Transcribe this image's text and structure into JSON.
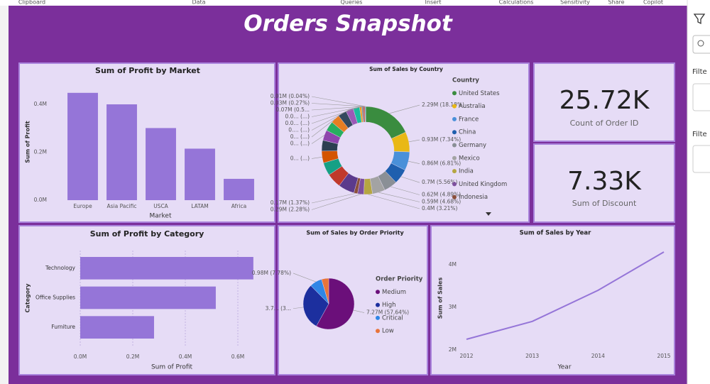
{
  "ribbon": [
    "Clipboard",
    "Data",
    "Queries",
    "Insert",
    "Calculations",
    "Sensitivity",
    "Share",
    "Copilot"
  ],
  "title": "Orders Snapshot",
  "side_panel": {
    "labels": [
      "Filte",
      "Filte"
    ]
  },
  "cards": [
    {
      "value": "25.72K",
      "label": "Count of Order ID"
    },
    {
      "value": "7.33K",
      "label": "Sum of Discount"
    }
  ],
  "chart_data": [
    {
      "type": "bar",
      "title": "Sum of Profit by Market",
      "x_label": "Market",
      "y_label": "Sum of Profit",
      "categories": [
        "Europe",
        "Asia Pacific",
        "USCA",
        "LATAM",
        "Africa"
      ],
      "values": [
        448000,
        400000,
        301000,
        215000,
        89000
      ],
      "color": "#9575d8",
      "ylim": [
        0,
        480000
      ],
      "yticks": [
        {
          "value": 0,
          "label": "0.0M"
        },
        {
          "value": 200000,
          "label": "0.2M"
        },
        {
          "value": 400000,
          "label": "0.4M"
        }
      ]
    },
    {
      "type": "donut",
      "title": "Sum of Sales by Country",
      "legend_title": "Country",
      "categories": [
        "United States",
        "Australia",
        "France",
        "China",
        "Germany",
        "Mexico",
        "India",
        "United Kingdom",
        "Indonesia",
        null,
        null,
        null,
        null,
        null,
        null,
        null,
        null,
        null,
        null,
        null,
        null,
        null,
        null,
        null,
        null
      ],
      "values": [
        2290000,
        930000,
        860000,
        700000,
        620000,
        590000,
        400000,
        290000,
        170000,
        750000,
        680000,
        600000,
        550000,
        500000,
        480000,
        450000,
        420000,
        400000,
        350000,
        300000,
        90000,
        80000,
        70000,
        34000,
        6000
      ],
      "value_labels": [
        "2.29M (18.18%)",
        "0.93M (7.34%)",
        "0.86M (6.81%)",
        "0.7M (5.56%)",
        "0.62M (4.89%)",
        "0.59M (4.68%)",
        "0.4M (3.21%)",
        "0.29M (2.28%)",
        "0.17M (1.37%)",
        null,
        null,
        null,
        "0... (...)",
        null,
        "0... (...)",
        null,
        "0... (...)",
        null,
        "0.... (...)",
        null,
        "0.0... (...)",
        "0.0... (...)",
        "0.07M (0.5...",
        "0.03M (0.27%)",
        "0.01M (0.04%)"
      ],
      "colors": [
        "#3a8c3f",
        "#e9b816",
        "#4a90d9",
        "#1f5fae",
        "#8a8f96",
        "#a3a3a3",
        "#b5a642",
        "#7d4f9e",
        "#8b4f3a",
        "#5b3a8c",
        "#c0392b",
        "#16a085",
        "#d35400",
        "#2c3e50",
        "#8e44ad",
        "#27ae60",
        "#e67e22",
        "#34495e",
        "#9b59b6",
        "#1abc9c",
        "#f39c12",
        "#7f8c8d",
        "#c0392b",
        "#2980b9",
        "#d4a017"
      ]
    },
    {
      "type": "hbar",
      "title": "Sum of Profit by Category",
      "x_label": "Sum of Profit",
      "y_label": "Category",
      "categories": [
        "Technology",
        "Office Supplies",
        "Furniture"
      ],
      "values": [
        659000,
        516000,
        281000
      ],
      "color": "#9575d8",
      "xlim": [
        0,
        700000
      ],
      "xticks": [
        {
          "value": 0,
          "label": "0.0M"
        },
        {
          "value": 200000,
          "label": "0.2M"
        },
        {
          "value": 400000,
          "label": "0.4M"
        },
        {
          "value": 600000,
          "label": "0.6M"
        }
      ],
      "grid": true
    },
    {
      "type": "pie",
      "title": "Sum of Sales by Order Priority",
      "legend_title": "Order Priority",
      "categories": [
        "Medium",
        "High",
        "Critical",
        "Low"
      ],
      "values": [
        7270000,
        3700000,
        980000,
        570000
      ],
      "value_labels": [
        "7.27M (57.64%)",
        "3.7... (3...",
        "0.98M (7.78%)",
        null
      ],
      "colors": [
        "#6b0f7a",
        "#1c2f9e",
        "#2f86e6",
        "#e8743b"
      ]
    },
    {
      "type": "line",
      "title": "Sum of Sales by Year",
      "x_label": "Year",
      "y_label": "Sum of Sales",
      "x": [
        2012,
        2013,
        2014,
        2015
      ],
      "values": [
        2250000,
        2670000,
        3400000,
        4300000
      ],
      "color": "#9575d8",
      "xlim": [
        2012,
        2015
      ],
      "xticks": [
        2012,
        2013,
        2014,
        2015
      ],
      "ylim": [
        2000000,
        4400000
      ],
      "yticks": [
        {
          "value": 2000000,
          "label": "2M"
        },
        {
          "value": 3000000,
          "label": "3M"
        },
        {
          "value": 4000000,
          "label": "4M"
        }
      ]
    }
  ]
}
